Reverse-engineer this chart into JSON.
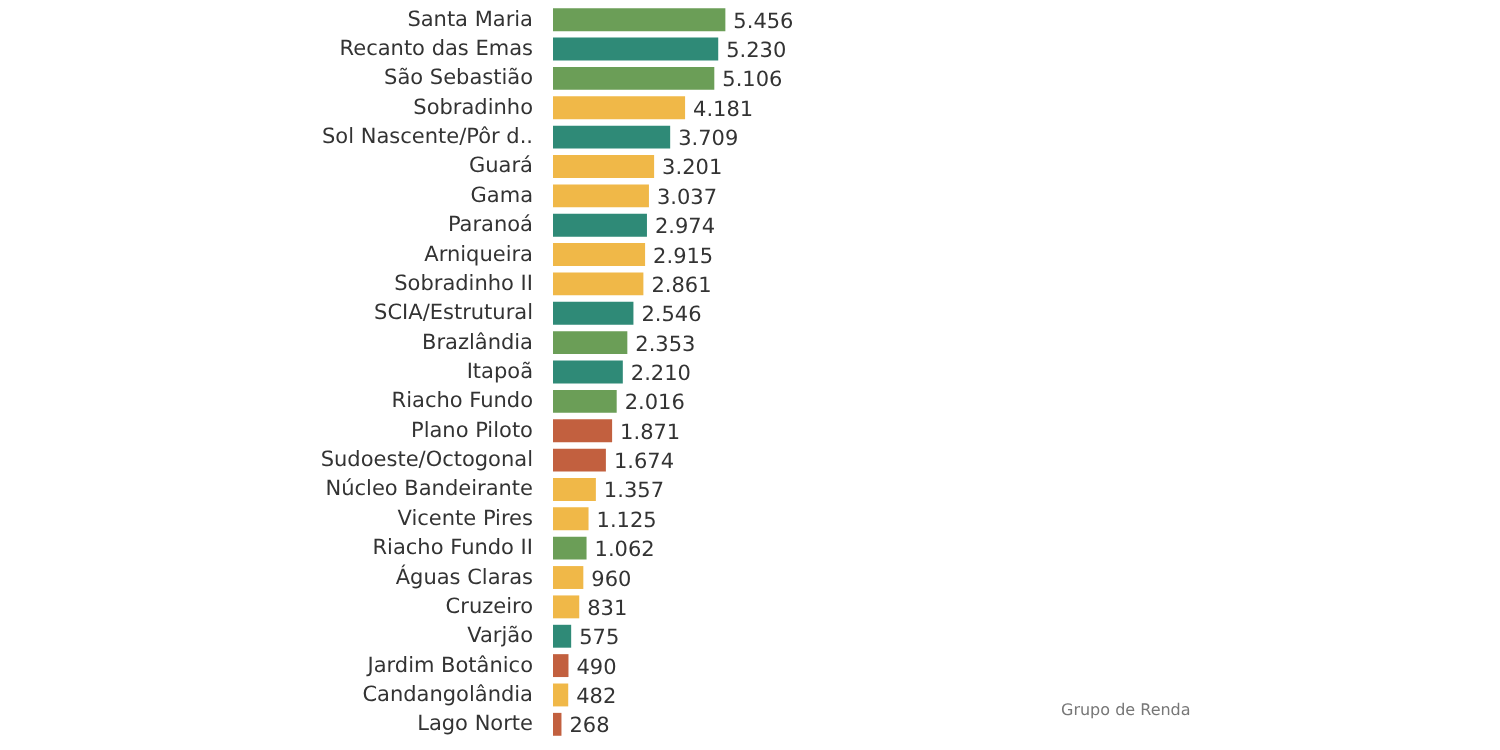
{
  "chart_data": {
    "type": "bar",
    "orientation": "horizontal",
    "categories": [
      "Santa Maria",
      "Recanto das Emas",
      "São Sebastião",
      "Sobradinho",
      "Sol Nascente/Pôr d..",
      "Guará",
      "Gama",
      "Paranoá",
      "Arniqueira",
      "Sobradinho II",
      "SCIA/Estrutural",
      "Brazlândia",
      "Itapoã",
      "Riacho Fundo",
      "Plano Piloto",
      "Sudoeste/Octogonal",
      "Núcleo Bandeirante",
      "Vicente Pires",
      "Riacho Fundo II",
      "Águas Claras",
      "Cruzeiro",
      "Varjão",
      "Jardim Botânico",
      "Candangolândia",
      "Lago Norte"
    ],
    "values": [
      5456,
      5230,
      5106,
      4181,
      3709,
      3201,
      3037,
      2974,
      2915,
      2861,
      2546,
      2353,
      2210,
      2016,
      1871,
      1674,
      1357,
      1125,
      1062,
      960,
      831,
      575,
      490,
      482,
      268
    ],
    "value_labels": [
      "5.456",
      "5.230",
      "5.106",
      "4.181",
      "3.709",
      "3.201",
      "3.037",
      "2.974",
      "2.915",
      "2.861",
      "2.546",
      "2.353",
      "2.210",
      "2.016",
      "1.871",
      "1.674",
      "1.357",
      "1.125",
      "1.062",
      "960",
      "831",
      "575",
      "490",
      "482",
      "268"
    ],
    "colors": [
      "#6b9e57",
      "#2f8a77",
      "#6b9e57",
      "#f0b848",
      "#2f8a77",
      "#f0b848",
      "#f0b848",
      "#2f8a77",
      "#f0b848",
      "#f0b848",
      "#2f8a77",
      "#6b9e57",
      "#2f8a77",
      "#6b9e57",
      "#c2603f",
      "#c2603f",
      "#f0b848",
      "#f0b848",
      "#6b9e57",
      "#f0b848",
      "#f0b848",
      "#2f8a77",
      "#c2603f",
      "#f0b848",
      "#c2603f"
    ],
    "annotations": [
      "Grupo de Renda"
    ]
  }
}
